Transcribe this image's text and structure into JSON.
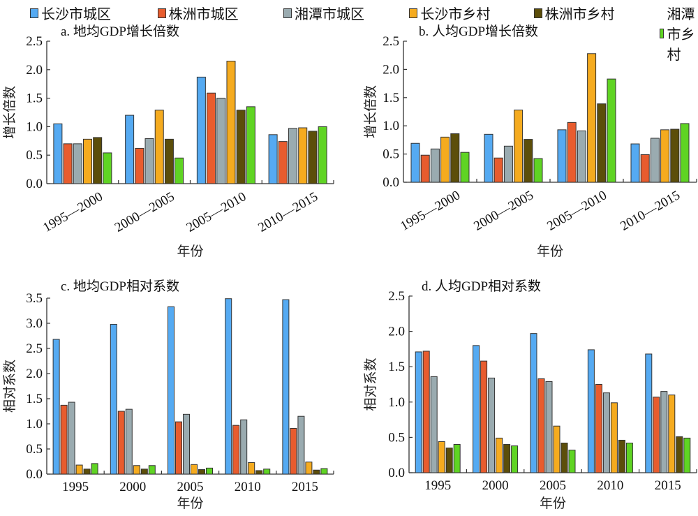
{
  "legend": [
    {
      "name": "长沙市城区",
      "color": "#55aaf2"
    },
    {
      "name": "株洲市城区",
      "color": "#e85c2e"
    },
    {
      "name": "湘潭市城区",
      "color": "#9aabb0"
    },
    {
      "name": "长沙市乡村",
      "color": "#f5ab1f"
    },
    {
      "name": "株洲市乡村",
      "color": "#5c4e0a"
    },
    {
      "name": "湘潭市乡村",
      "color": "#5fd423"
    }
  ],
  "chart_data": [
    {
      "type": "bar",
      "title": "a. 地均GDP增长倍数",
      "xlabel": "年份",
      "ylabel": "增长倍数",
      "ylim": [
        0,
        2.5
      ],
      "yticks": [
        "0.0",
        "0.5",
        "1.0",
        "1.5",
        "2.0",
        "2.5"
      ],
      "rotate_xticks": true,
      "categories": [
        "1995—2000",
        "2000—2005",
        "2005—2010",
        "2010—2015"
      ],
      "series": [
        {
          "name": "长沙市城区",
          "values": [
            1.05,
            1.2,
            1.87,
            0.86
          ]
        },
        {
          "name": "株洲市城区",
          "values": [
            0.7,
            0.62,
            1.59,
            0.74
          ]
        },
        {
          "name": "湘潭市城区",
          "values": [
            0.7,
            0.79,
            1.5,
            0.97
          ]
        },
        {
          "name": "长沙市乡村",
          "values": [
            0.78,
            1.29,
            2.15,
            0.98
          ]
        },
        {
          "name": "株洲市乡村",
          "values": [
            0.81,
            0.78,
            1.29,
            0.92
          ]
        },
        {
          "name": "湘潭市乡村",
          "values": [
            0.54,
            0.45,
            1.35,
            1.0
          ]
        }
      ]
    },
    {
      "type": "bar",
      "title": "b. 人均GDP增长倍数",
      "xlabel": "年份",
      "ylabel": "增长倍数",
      "ylim": [
        0,
        2.5
      ],
      "yticks": [
        "0.0",
        "0.5",
        "1.0",
        "1.5",
        "2.0",
        "2.5"
      ],
      "rotate_xticks": true,
      "categories": [
        "1995—2000",
        "2000—2005",
        "2005—2010",
        "2010—2015"
      ],
      "series": [
        {
          "name": "长沙市城区",
          "values": [
            0.69,
            0.85,
            0.93,
            0.68
          ]
        },
        {
          "name": "株洲市城区",
          "values": [
            0.48,
            0.43,
            1.06,
            0.49
          ]
        },
        {
          "name": "湘潭市城区",
          "values": [
            0.59,
            0.64,
            0.91,
            0.78
          ]
        },
        {
          "name": "长沙市乡村",
          "values": [
            0.8,
            1.28,
            2.28,
            0.93
          ]
        },
        {
          "name": "株洲市乡村",
          "values": [
            0.86,
            0.76,
            1.39,
            0.94
          ]
        },
        {
          "name": "湘潭市乡村",
          "values": [
            0.53,
            0.42,
            1.83,
            1.04
          ]
        }
      ]
    },
    {
      "type": "bar",
      "title": "c. 地均GDP相对系数",
      "xlabel": "年份",
      "ylabel": "相对系数",
      "ylim": [
        0,
        3.5
      ],
      "yticks": [
        "0.0",
        "0.5",
        "1.0",
        "1.5",
        "2.0",
        "2.5",
        "3.0",
        "3.5"
      ],
      "rotate_xticks": false,
      "categories": [
        "1995",
        "2000",
        "2005",
        "2010",
        "2015"
      ],
      "series": [
        {
          "name": "长沙市城区",
          "values": [
            2.68,
            2.98,
            3.33,
            3.49,
            3.47
          ]
        },
        {
          "name": "株洲市城区",
          "values": [
            1.37,
            1.25,
            1.04,
            0.97,
            0.91
          ]
        },
        {
          "name": "湘潭市城区",
          "values": [
            1.43,
            1.29,
            1.19,
            1.08,
            1.15
          ]
        },
        {
          "name": "长沙市乡村",
          "values": [
            0.18,
            0.17,
            0.19,
            0.23,
            0.24
          ]
        },
        {
          "name": "株洲市乡村",
          "values": [
            0.1,
            0.1,
            0.09,
            0.07,
            0.08
          ]
        },
        {
          "name": "湘潭市乡村",
          "values": [
            0.21,
            0.17,
            0.12,
            0.1,
            0.11
          ]
        }
      ]
    },
    {
      "type": "bar",
      "title": "d. 人均GDP相对系数",
      "xlabel": "年份",
      "ylabel": "相对系数",
      "ylim": [
        0,
        2.5
      ],
      "yticks": [
        "0.0",
        "0.5",
        "1.0",
        "1.5",
        "2.0",
        "2.5"
      ],
      "rotate_xticks": false,
      "categories": [
        "1995",
        "2000",
        "2005",
        "2010",
        "2015"
      ],
      "series": [
        {
          "name": "长沙市城区",
          "values": [
            1.71,
            1.8,
            1.97,
            1.74,
            1.68
          ]
        },
        {
          "name": "株洲市城区",
          "values": [
            1.72,
            1.58,
            1.33,
            1.25,
            1.07
          ]
        },
        {
          "name": "湘潭市城区",
          "values": [
            1.36,
            1.34,
            1.29,
            1.13,
            1.15
          ]
        },
        {
          "name": "长沙市乡村",
          "values": [
            0.44,
            0.49,
            0.66,
            0.99,
            1.1
          ]
        },
        {
          "name": "株洲市乡村",
          "values": [
            0.35,
            0.4,
            0.42,
            0.46,
            0.51
          ]
        },
        {
          "name": "湘潭市乡村",
          "values": [
            0.4,
            0.38,
            0.32,
            0.42,
            0.49
          ]
        }
      ]
    }
  ]
}
